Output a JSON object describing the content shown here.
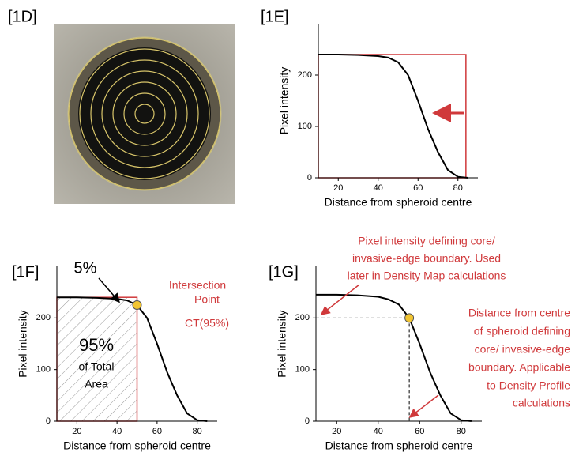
{
  "image_panel": {
    "title": "[1D]"
  },
  "chart_data": [
    {
      "type": "line",
      "title": "[1E]",
      "xlabel": "Distance from spheroid centre",
      "ylabel": "Pixel intensity",
      "x": [
        10,
        20,
        30,
        40,
        45,
        50,
        55,
        60,
        65,
        70,
        75,
        80,
        85
      ],
      "values": [
        240,
        240,
        239,
        237,
        234,
        225,
        200,
        150,
        95,
        50,
        15,
        2,
        0
      ],
      "color": "#000000",
      "xlim": [
        10,
        90
      ],
      "ylim": [
        0,
        300
      ],
      "xticks": [
        20,
        40,
        60,
        80
      ],
      "yticks": [
        0,
        100,
        200
      ],
      "reference_box": {
        "x0": 10,
        "x1": 84,
        "y": 240,
        "color": "#d0393b"
      },
      "annotations": []
    },
    {
      "type": "line",
      "title": "[1F]",
      "xlabel": "Distance from spheroid centre",
      "ylabel": "Pixel intensity",
      "x": [
        10,
        20,
        30,
        40,
        45,
        50,
        55,
        60,
        65,
        70,
        75,
        80,
        85
      ],
      "values": [
        240,
        240,
        239,
        237,
        234,
        225,
        200,
        150,
        95,
        50,
        15,
        2,
        0
      ],
      "color": "#000000",
      "xlim": [
        10,
        90
      ],
      "ylim": [
        0,
        300
      ],
      "xticks": [
        20,
        40,
        60,
        80
      ],
      "yticks": [
        0,
        100,
        200
      ],
      "reference_box": {
        "x0": 10,
        "x1": 50,
        "y": 240,
        "color": "#d0393b"
      },
      "point": {
        "x": 50,
        "y": 225
      },
      "annotations": [
        "5%",
        "Intersection",
        "Point",
        "CT(95%)",
        "95%",
        "of Total",
        "Area"
      ]
    },
    {
      "type": "line",
      "title": "[1G]",
      "xlabel": "Distance from spheroid centre",
      "ylabel": "Pixel intensity",
      "x": [
        10,
        20,
        30,
        40,
        45,
        50,
        55,
        60,
        65,
        70,
        75,
        80,
        85
      ],
      "values": [
        245,
        245,
        244,
        241,
        236,
        226,
        200,
        150,
        95,
        50,
        15,
        2,
        0
      ],
      "color": "#000000",
      "xlim": [
        10,
        90
      ],
      "ylim": [
        0,
        300
      ],
      "xticks": [
        20,
        40,
        60,
        80
      ],
      "yticks": [
        0,
        100,
        200
      ],
      "point": {
        "x": 55,
        "y": 200
      },
      "annotations": [
        "Pixel intensity defining core/",
        "invasive-edge boundary. Used",
        "later in Density Map calculations",
        "Distance from centre",
        "of spheroid defining",
        "core/ invasive-edge",
        "boundary. Applicable",
        "to Density Profile",
        "calculations"
      ]
    }
  ]
}
